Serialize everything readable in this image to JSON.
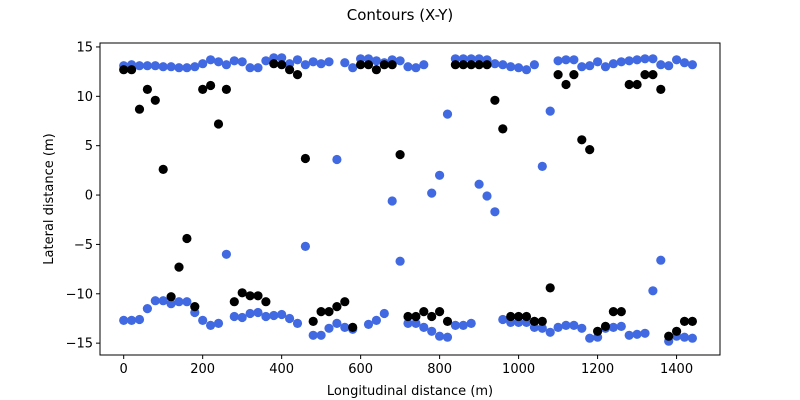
{
  "chart_data": {
    "type": "scatter",
    "title": "Contours (X-Y)",
    "xlabel": "Longitudinal distance (m)",
    "ylabel": "Lateral distance (m)",
    "xlim": [
      -60,
      1510
    ],
    "ylim": [
      -16.2,
      15.4
    ],
    "xticks": [
      0,
      200,
      400,
      600,
      800,
      1000,
      1200,
      1400
    ],
    "yticks": [
      -15,
      -10,
      -5,
      0,
      5,
      10,
      15
    ],
    "grid": false,
    "legend": "none",
    "series": [
      {
        "color": "#4169e1",
        "points": [
          [
            0,
            13.1
          ],
          [
            20,
            13.2
          ],
          [
            40,
            13.1
          ],
          [
            60,
            13.1
          ],
          [
            80,
            13.1
          ],
          [
            100,
            13.0
          ],
          [
            120,
            13.0
          ],
          [
            140,
            12.9
          ],
          [
            160,
            12.9
          ],
          [
            180,
            13.0
          ],
          [
            200,
            13.3
          ],
          [
            220,
            13.7
          ],
          [
            240,
            13.5
          ],
          [
            260,
            13.2
          ],
          [
            280,
            13.6
          ],
          [
            300,
            13.5
          ],
          [
            320,
            12.9
          ],
          [
            340,
            12.9
          ],
          [
            360,
            13.6
          ],
          [
            380,
            13.9
          ],
          [
            400,
            13.9
          ],
          [
            420,
            13.3
          ],
          [
            440,
            13.7
          ],
          [
            460,
            13.2
          ],
          [
            480,
            13.5
          ],
          [
            500,
            13.3
          ],
          [
            520,
            13.5
          ],
          [
            560,
            13.4
          ],
          [
            580,
            12.9
          ],
          [
            600,
            13.8
          ],
          [
            620,
            13.8
          ],
          [
            640,
            13.6
          ],
          [
            660,
            13.4
          ],
          [
            680,
            13.7
          ],
          [
            700,
            13.6
          ],
          [
            720,
            13.0
          ],
          [
            740,
            12.9
          ],
          [
            760,
            13.2
          ],
          [
            840,
            13.8
          ],
          [
            860,
            13.8
          ],
          [
            880,
            13.8
          ],
          [
            900,
            13.8
          ],
          [
            920,
            13.7
          ],
          [
            940,
            13.3
          ],
          [
            960,
            13.2
          ],
          [
            980,
            13.0
          ],
          [
            1000,
            12.9
          ],
          [
            1020,
            12.7
          ],
          [
            1040,
            13.2
          ],
          [
            1100,
            13.6
          ],
          [
            1120,
            13.7
          ],
          [
            1140,
            13.7
          ],
          [
            1160,
            13.0
          ],
          [
            1180,
            13.1
          ],
          [
            1200,
            13.5
          ],
          [
            1220,
            13.0
          ],
          [
            1240,
            13.3
          ],
          [
            1260,
            13.5
          ],
          [
            1280,
            13.6
          ],
          [
            1300,
            13.7
          ],
          [
            1320,
            13.8
          ],
          [
            1340,
            13.8
          ],
          [
            1360,
            13.2
          ],
          [
            1380,
            13.1
          ],
          [
            1400,
            13.7
          ],
          [
            1420,
            13.4
          ],
          [
            1440,
            13.2
          ],
          [
            0,
            -12.7
          ],
          [
            20,
            -12.7
          ],
          [
            40,
            -12.6
          ],
          [
            60,
            -11.5
          ],
          [
            80,
            -10.7
          ],
          [
            100,
            -10.7
          ],
          [
            120,
            -11.0
          ],
          [
            140,
            -10.8
          ],
          [
            160,
            -10.8
          ],
          [
            180,
            -11.9
          ],
          [
            200,
            -12.7
          ],
          [
            220,
            -13.2
          ],
          [
            240,
            -13.0
          ],
          [
            280,
            -12.3
          ],
          [
            300,
            -12.4
          ],
          [
            320,
            -12.0
          ],
          [
            340,
            -11.9
          ],
          [
            360,
            -12.3
          ],
          [
            380,
            -12.2
          ],
          [
            400,
            -12.1
          ],
          [
            420,
            -12.5
          ],
          [
            440,
            -13.0
          ],
          [
            480,
            -14.2
          ],
          [
            500,
            -14.2
          ],
          [
            520,
            -13.5
          ],
          [
            540,
            -13.0
          ],
          [
            560,
            -13.4
          ],
          [
            580,
            -13.6
          ],
          [
            620,
            -13.1
          ],
          [
            640,
            -12.7
          ],
          [
            660,
            -12.0
          ],
          [
            720,
            -13.0
          ],
          [
            740,
            -13.0
          ],
          [
            760,
            -13.4
          ],
          [
            780,
            -13.8
          ],
          [
            800,
            -14.3
          ],
          [
            820,
            -14.4
          ],
          [
            840,
            -13.2
          ],
          [
            860,
            -13.2
          ],
          [
            880,
            -13.0
          ],
          [
            960,
            -12.6
          ],
          [
            980,
            -12.9
          ],
          [
            1000,
            -12.9
          ],
          [
            1020,
            -12.9
          ],
          [
            1040,
            -13.4
          ],
          [
            1060,
            -13.5
          ],
          [
            1080,
            -13.9
          ],
          [
            1100,
            -13.4
          ],
          [
            1120,
            -13.2
          ],
          [
            1140,
            -13.2
          ],
          [
            1160,
            -13.5
          ],
          [
            1180,
            -14.5
          ],
          [
            1200,
            -14.4
          ],
          [
            1220,
            -13.5
          ],
          [
            1240,
            -13.4
          ],
          [
            1260,
            -13.3
          ],
          [
            1280,
            -14.2
          ],
          [
            1300,
            -14.1
          ],
          [
            1320,
            -14.0
          ],
          [
            1380,
            -14.8
          ],
          [
            1400,
            -14.3
          ],
          [
            1420,
            -14.4
          ],
          [
            1440,
            -14.5
          ],
          [
            260,
            -6.0
          ],
          [
            460,
            -5.2
          ],
          [
            540,
            3.6
          ],
          [
            680,
            -0.6
          ],
          [
            700,
            -6.7
          ],
          [
            780,
            0.2
          ],
          [
            800,
            2.0
          ],
          [
            820,
            8.2
          ],
          [
            900,
            1.1
          ],
          [
            920,
            -0.1
          ],
          [
            940,
            -1.7
          ],
          [
            1060,
            2.9
          ],
          [
            1080,
            8.5
          ],
          [
            1340,
            -9.7
          ],
          [
            1360,
            -6.6
          ]
        ]
      },
      {
        "color": "#000000",
        "points": [
          [
            0,
            12.7
          ],
          [
            20,
            12.7
          ],
          [
            40,
            8.7
          ],
          [
            60,
            10.7
          ],
          [
            80,
            9.6
          ],
          [
            100,
            2.6
          ],
          [
            120,
            -10.3
          ],
          [
            140,
            -7.3
          ],
          [
            160,
            -4.4
          ],
          [
            180,
            -11.3
          ],
          [
            200,
            10.7
          ],
          [
            220,
            11.1
          ],
          [
            240,
            7.2
          ],
          [
            260,
            10.7
          ],
          [
            280,
            -10.8
          ],
          [
            300,
            -9.9
          ],
          [
            320,
            -10.2
          ],
          [
            340,
            -10.2
          ],
          [
            360,
            -10.8
          ],
          [
            380,
            13.3
          ],
          [
            400,
            13.2
          ],
          [
            420,
            12.7
          ],
          [
            440,
            12.2
          ],
          [
            460,
            3.7
          ],
          [
            480,
            -12.8
          ],
          [
            500,
            -11.8
          ],
          [
            520,
            -11.8
          ],
          [
            540,
            -11.3
          ],
          [
            560,
            -10.8
          ],
          [
            580,
            -13.4
          ],
          [
            600,
            13.2
          ],
          [
            620,
            13.2
          ],
          [
            640,
            12.7
          ],
          [
            660,
            13.2
          ],
          [
            680,
            13.2
          ],
          [
            700,
            4.1
          ],
          [
            720,
            -12.3
          ],
          [
            740,
            -12.3
          ],
          [
            760,
            -11.8
          ],
          [
            780,
            -12.3
          ],
          [
            800,
            -11.8
          ],
          [
            820,
            -12.8
          ],
          [
            840,
            13.2
          ],
          [
            860,
            13.2
          ],
          [
            880,
            13.2
          ],
          [
            900,
            13.2
          ],
          [
            920,
            13.2
          ],
          [
            940,
            9.6
          ],
          [
            960,
            6.7
          ],
          [
            980,
            -12.3
          ],
          [
            1000,
            -12.3
          ],
          [
            1020,
            -12.3
          ],
          [
            1040,
            -12.8
          ],
          [
            1060,
            -12.8
          ],
          [
            1080,
            -9.4
          ],
          [
            1100,
            12.2
          ],
          [
            1120,
            11.2
          ],
          [
            1140,
            12.2
          ],
          [
            1160,
            5.6
          ],
          [
            1180,
            4.6
          ],
          [
            1200,
            -13.8
          ],
          [
            1220,
            -13.3
          ],
          [
            1240,
            -11.8
          ],
          [
            1260,
            -11.8
          ],
          [
            1280,
            11.2
          ],
          [
            1300,
            11.2
          ],
          [
            1320,
            12.2
          ],
          [
            1340,
            12.2
          ],
          [
            1360,
            10.7
          ],
          [
            1380,
            -14.3
          ],
          [
            1400,
            -13.8
          ],
          [
            1420,
            -12.8
          ],
          [
            1440,
            -12.8
          ]
        ]
      }
    ]
  }
}
